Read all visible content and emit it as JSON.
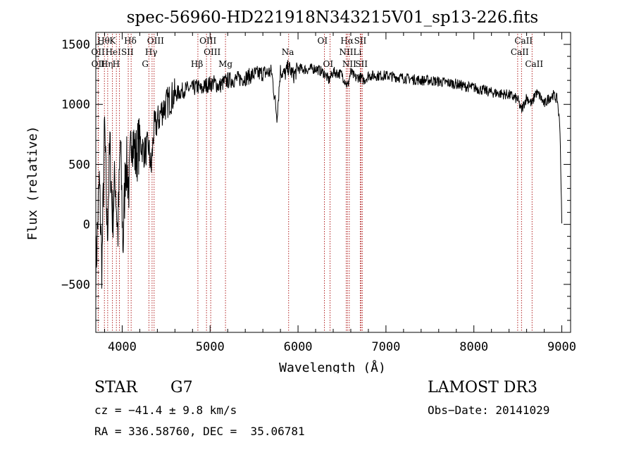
{
  "chart_data": {
    "type": "line",
    "title": "spec-56960-HD221918N343215V01_sp13-226.fits",
    "xlabel": "Wavelength (Å)",
    "ylabel": "Flux (relative)",
    "xlim": [
      3700,
      9100
    ],
    "ylim": [
      -900,
      1600
    ],
    "xticks": [
      4000,
      5000,
      6000,
      7000,
      8000,
      9000
    ],
    "yticks": [
      -500,
      0,
      500,
      1000,
      1500
    ],
    "line_color": "#000000",
    "marker_color": "#b22222",
    "series": [
      {
        "name": "flux",
        "x": [
          3700,
          3740,
          3770,
          3800,
          3830,
          3860,
          3890,
          3920,
          3950,
          3980,
          4010,
          4040,
          4080,
          4110,
          4150,
          4200,
          4250,
          4300,
          4330,
          4360,
          4400,
          4450,
          4500,
          4550,
          4600,
          4650,
          4700,
          4750,
          4800,
          4860,
          4900,
          4950,
          5000,
          5050,
          5100,
          5150,
          5200,
          5300,
          5400,
          5500,
          5600,
          5700,
          5760,
          5800,
          5850,
          5890,
          5950,
          6000,
          6100,
          6200,
          6300,
          6350,
          6400,
          6450,
          6500,
          6563,
          6600,
          6650,
          6700,
          6750,
          6800,
          6900,
          7000,
          7100,
          7200,
          7300,
          7400,
          7500,
          7600,
          7700,
          7800,
          7900,
          8000,
          8100,
          8200,
          8300,
          8400,
          8500,
          8540,
          8600,
          8662,
          8700,
          8750,
          8800,
          8850,
          8900,
          8950,
          8980,
          9000
        ],
        "values": [
          -400,
          350,
          -350,
          800,
          -100,
          650,
          50,
          400,
          -100,
          700,
          -200,
          550,
          300,
          800,
          550,
          700,
          600,
          650,
          450,
          800,
          850,
          950,
          1000,
          1050,
          1080,
          1100,
          1120,
          1130,
          1130,
          1150,
          1120,
          1160,
          1170,
          1180,
          1150,
          1180,
          1200,
          1210,
          1220,
          1250,
          1260,
          1270,
          900,
          1280,
          1250,
          1310,
          1240,
          1300,
          1290,
          1300,
          1260,
          1200,
          1270,
          1260,
          1250,
          1150,
          1270,
          1220,
          1230,
          1200,
          1240,
          1240,
          1240,
          1230,
          1220,
          1210,
          1200,
          1200,
          1190,
          1180,
          1170,
          1150,
          1140,
          1120,
          1100,
          1090,
          1080,
          1040,
          950,
          1060,
          1000,
          1100,
          1070,
          1000,
          1050,
          1080,
          1040,
          800,
          0
        ]
      }
    ],
    "line_markers": [
      {
        "label": "Hθ",
        "x": 3798,
        "row": 0
      },
      {
        "label": "OII",
        "x": 3727,
        "row": 1
      },
      {
        "label": "OII",
        "x": 3729,
        "row": 2
      },
      {
        "label": "Hη",
        "x": 3835,
        "row": 2
      },
      {
        "label": "HeI",
        "x": 3889,
        "row": 1
      },
      {
        "label": "K",
        "x": 3934,
        "row": 0
      },
      {
        "label": "H",
        "x": 3969,
        "row": 2
      },
      {
        "label": "SII",
        "x": 4069,
        "row": 1
      },
      {
        "label": "Hδ",
        "x": 4102,
        "row": 0
      },
      {
        "label": "OIII",
        "x": 4363,
        "row": 0
      },
      {
        "label": "Hγ",
        "x": 4340,
        "row": 1
      },
      {
        "label": "G",
        "x": 4304,
        "row": 2
      },
      {
        "label": "OIII",
        "x": 4959,
        "row": 0
      },
      {
        "label": "OIII",
        "x": 5007,
        "row": 1
      },
      {
        "label": "Hβ",
        "x": 4861,
        "row": 2
      },
      {
        "label": "Mg",
        "x": 5175,
        "row": 2
      },
      {
        "label": "Na",
        "x": 5893,
        "row": 1
      },
      {
        "label": "OI",
        "x": 6300,
        "row": 0
      },
      {
        "label": "OI",
        "x": 6364,
        "row": 2
      },
      {
        "label": "Hα",
        "x": 6563,
        "row": 0
      },
      {
        "label": "SII",
        "x": 6717,
        "row": 0
      },
      {
        "label": "NII",
        "x": 6548,
        "row": 1
      },
      {
        "label": "Li",
        "x": 6708,
        "row": 1
      },
      {
        "label": "NII",
        "x": 6583,
        "row": 2
      },
      {
        "label": "SII",
        "x": 6731,
        "row": 2
      },
      {
        "label": "CaII",
        "x": 8542,
        "row": 0
      },
      {
        "label": "CaII",
        "x": 8498,
        "row": 1
      },
      {
        "label": "CaII",
        "x": 8662,
        "row": 2
      }
    ]
  },
  "info": {
    "object_class": "STAR",
    "subclass": "G7",
    "survey": "LAMOST DR3",
    "cz": "cz = −41.4 ± 9.8 km/s",
    "obs_date": "Obs−Date: 20141029",
    "coords": "RA = 336.58760, DEC =  35.06781"
  }
}
